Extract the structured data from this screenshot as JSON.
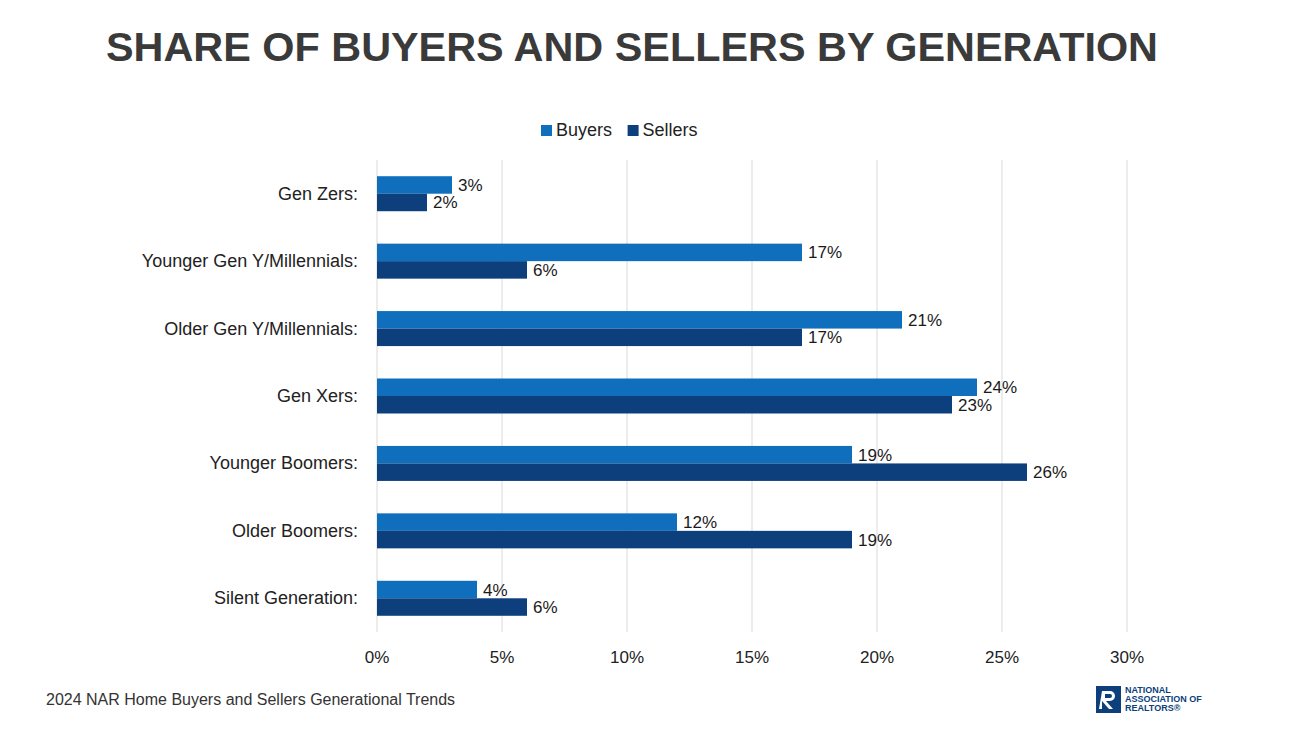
{
  "chart_data": {
    "type": "bar",
    "orientation": "horizontal",
    "title": "SHARE OF BUYERS AND SELLERS BY GENERATION",
    "categories": [
      "Gen Zers:",
      "Younger Gen Y/Millennials:",
      "Older Gen Y/Millennials:",
      "Gen Xers:",
      "Younger Boomers:",
      "Older Boomers:",
      "Silent Generation:"
    ],
    "series": [
      {
        "name": "Buyers",
        "color": "#0f6fbd",
        "values": [
          3,
          17,
          21,
          24,
          19,
          12,
          4
        ],
        "value_labels": [
          "3%",
          "17%",
          "21%",
          "24%",
          "19%",
          "12%",
          "4%"
        ]
      },
      {
        "name": "Sellers",
        "color": "#0c3f7c",
        "values": [
          2,
          6,
          17,
          23,
          26,
          19,
          6
        ],
        "value_labels": [
          "2%",
          "6%",
          "17%",
          "23%",
          "26%",
          "19%",
          "6%"
        ]
      }
    ],
    "xlim": [
      0,
      30
    ],
    "xticks": [
      {
        "value": 0,
        "label": "0%"
      },
      {
        "value": 5,
        "label": "5%"
      },
      {
        "value": 10,
        "label": "10%"
      },
      {
        "value": 15,
        "label": "15%"
      },
      {
        "value": 20,
        "label": "20%"
      },
      {
        "value": 25,
        "label": "25%"
      },
      {
        "value": 30,
        "label": "30%"
      }
    ],
    "grid": true,
    "legend": "top",
    "data_labels": true,
    "source": "2024 NAR Home Buyers and Sellers Generational Trends",
    "logo": [
      "NATIONAL",
      "ASSOCIATION OF",
      "REALTORS®"
    ]
  }
}
